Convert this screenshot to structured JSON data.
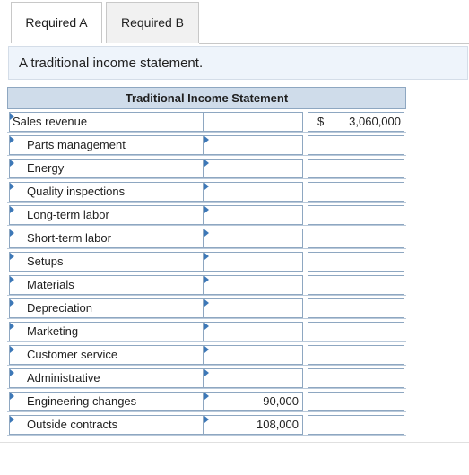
{
  "tabs": [
    {
      "label": "Required A"
    },
    {
      "label": "Required B"
    }
  ],
  "banner": {
    "text": "A traditional income statement."
  },
  "statement": {
    "title": "Traditional Income Statement",
    "sales": {
      "label": "Sales revenue",
      "currency": "$",
      "amount": "3,060,000"
    },
    "rows": [
      {
        "label": "Parts management",
        "value": ""
      },
      {
        "label": "Energy",
        "value": ""
      },
      {
        "label": "Quality inspections",
        "value": ""
      },
      {
        "label": "Long-term labor",
        "value": ""
      },
      {
        "label": "Short-term labor",
        "value": ""
      },
      {
        "label": "Setups",
        "value": ""
      },
      {
        "label": "Materials",
        "value": ""
      },
      {
        "label": "Depreciation",
        "value": ""
      },
      {
        "label": "Marketing",
        "value": ""
      },
      {
        "label": "Customer service",
        "value": ""
      },
      {
        "label": "Administrative",
        "value": ""
      },
      {
        "label": "Engineering changes",
        "value": "90,000"
      },
      {
        "label": "Outside contracts",
        "value": "108,000"
      }
    ]
  }
}
